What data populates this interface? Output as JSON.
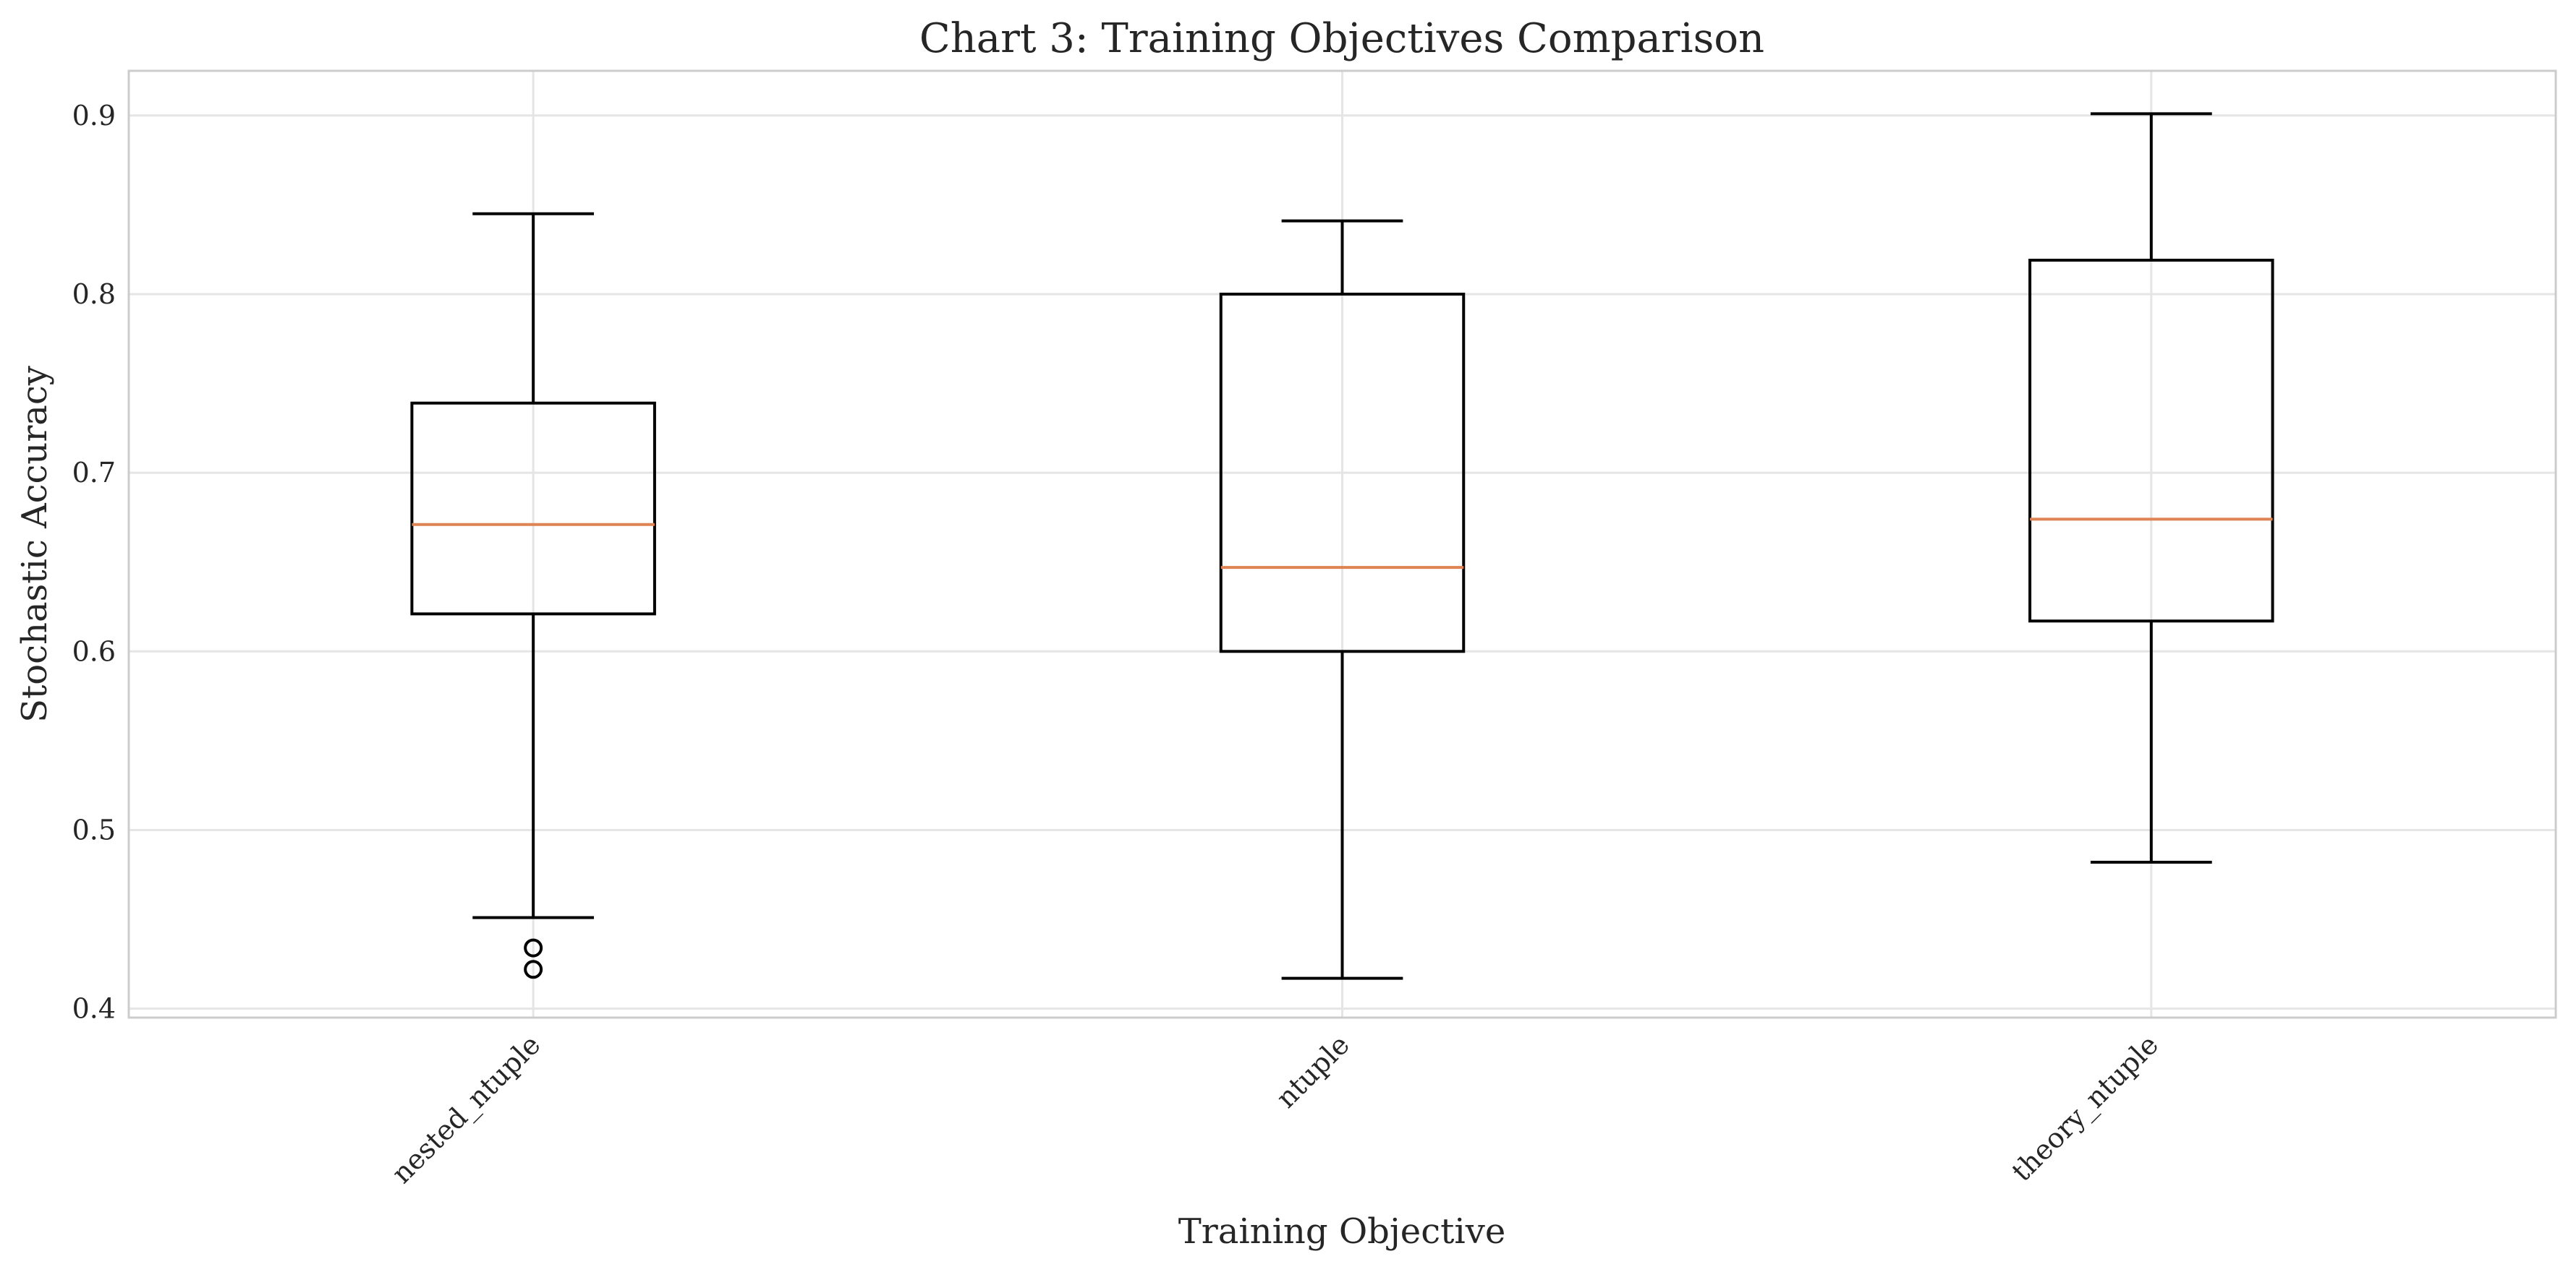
{
  "chart_data": {
    "type": "boxplot",
    "title": "Chart 3: Training Objectives Comparison",
    "xlabel": "Training Objective",
    "ylabel": "Stochastic Accuracy",
    "ylim": [
      0.395,
      0.925
    ],
    "yticks": [
      0.4,
      0.5,
      0.6,
      0.7,
      0.8,
      0.9
    ],
    "ytick_labels": [
      "0.4",
      "0.5",
      "0.6",
      "0.7",
      "0.8",
      "0.9"
    ],
    "grid": true,
    "categories": [
      "nested_ntuple",
      "ntuple",
      "theory_ntuple"
    ],
    "boxes": [
      {
        "whisker_low": 0.451,
        "q1": 0.621,
        "median": 0.671,
        "q3": 0.739,
        "whisker_high": 0.845,
        "outliers": [
          0.434,
          0.422
        ]
      },
      {
        "whisker_low": 0.417,
        "q1": 0.6,
        "median": 0.647,
        "q3": 0.8,
        "whisker_high": 0.841,
        "outliers": []
      },
      {
        "whisker_low": 0.482,
        "q1": 0.617,
        "median": 0.674,
        "q3": 0.819,
        "whisker_high": 0.901,
        "outliers": []
      }
    ],
    "colors": {
      "box": "#000000",
      "median": "#dd8452",
      "grid": "#e5e5e5",
      "frame": "#cccccc",
      "text": "#262626"
    }
  }
}
